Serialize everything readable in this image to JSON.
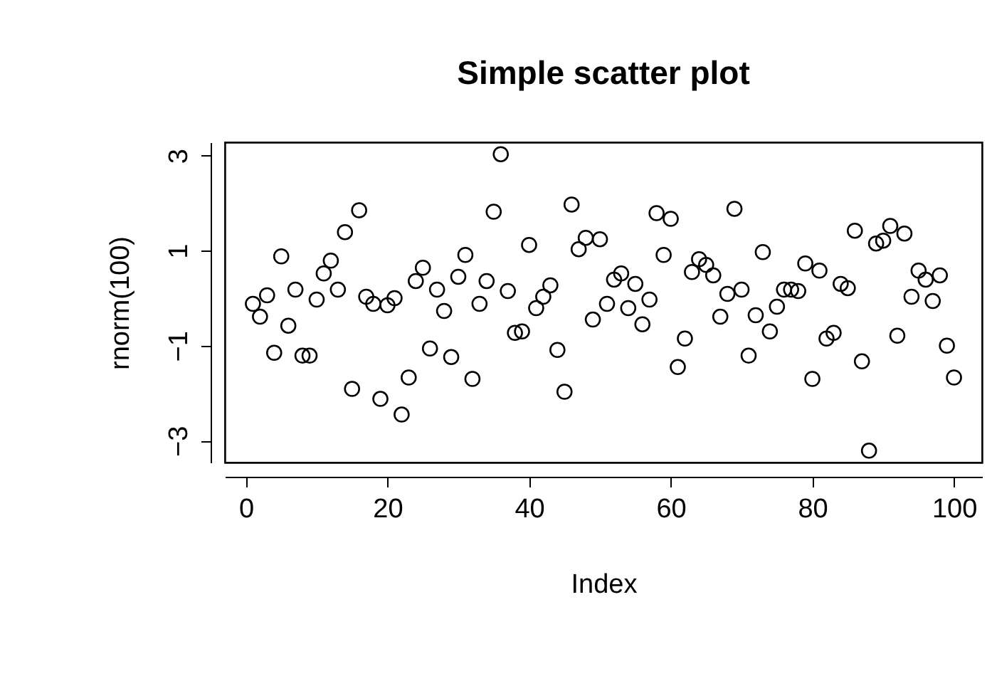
{
  "chart_data": {
    "type": "scatter",
    "title": "Simple scatter plot",
    "xlabel": "Index",
    "ylabel": "rnorm(100)",
    "x": [
      1,
      2,
      3,
      4,
      5,
      6,
      7,
      8,
      9,
      10,
      11,
      12,
      13,
      14,
      15,
      16,
      17,
      18,
      19,
      20,
      21,
      22,
      23,
      24,
      25,
      26,
      27,
      28,
      29,
      30,
      31,
      32,
      33,
      34,
      35,
      36,
      37,
      38,
      39,
      40,
      41,
      42,
      43,
      44,
      45,
      46,
      47,
      48,
      49,
      50,
      51,
      52,
      53,
      54,
      55,
      56,
      57,
      58,
      59,
      60,
      61,
      62,
      63,
      64,
      65,
      66,
      67,
      68,
      69,
      70,
      71,
      72,
      73,
      74,
      75,
      76,
      77,
      78,
      79,
      80,
      81,
      82,
      83,
      84,
      85,
      86,
      87,
      88,
      89,
      90,
      91,
      92,
      93,
      94,
      95,
      96,
      97,
      98,
      99,
      100
    ],
    "series": [
      {
        "color": "#000000",
        "values": [
          -0.12,
          -0.39,
          0.06,
          -1.15,
          0.88,
          -0.58,
          0.18,
          -1.21,
          -1.21,
          -0.03,
          0.52,
          0.79,
          0.18,
          1.39,
          -1.91,
          1.85,
          0.03,
          -0.12,
          -2.12,
          -0.15,
          0,
          -2.45,
          -1.67,
          0.36,
          0.64,
          -1.06,
          0.18,
          -0.27,
          -1.24,
          0.45,
          0.91,
          -1.7,
          -0.12,
          0.36,
          1.82,
          3.03,
          0.15,
          -0.73,
          -0.7,
          1.12,
          -0.21,
          0.03,
          0.27,
          -1.09,
          -1.97,
          1.97,
          1.03,
          1.27,
          -0.45,
          1.24,
          -0.12,
          0.39,
          0.52,
          -0.21,
          0.3,
          -0.55,
          -0.03,
          1.79,
          0.91,
          1.67,
          -1.45,
          -0.85,
          0.55,
          0.82,
          0.7,
          0.48,
          -0.39,
          0.09,
          1.88,
          0.18,
          -1.21,
          -0.36,
          0.97,
          -0.7,
          -0.18,
          0.18,
          0.18,
          0.15,
          0.73,
          -1.7,
          0.58,
          -0.85,
          -0.73,
          0.3,
          0.21,
          1.42,
          -1.33,
          -3.21,
          1.15,
          1.21,
          1.52,
          -0.79,
          1.36,
          0.03,
          0.58,
          0.39,
          -0.06,
          0.48,
          -1,
          -1.67
        ]
      }
    ],
    "xlim": [
      -2.96,
      103.96
    ],
    "ylim": [
      -3.46,
      3.28
    ],
    "xticks": [
      0,
      20,
      40,
      60,
      80,
      100
    ],
    "yticks": [
      -3,
      -1,
      1,
      3
    ],
    "marker": "circle",
    "grid": false,
    "legend": false
  }
}
